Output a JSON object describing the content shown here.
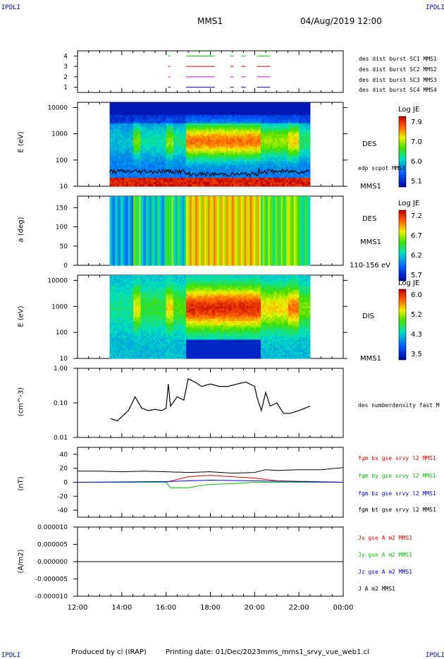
{
  "header": {
    "corner_left_top": "IPDLI",
    "corner_right_top": "IPDLI",
    "corner_left_bottom": "IPDLI",
    "corner_right_bottom": "IPDLI",
    "spacecraft": "MMS1",
    "datetime": "04/Aug/2019 12:00"
  },
  "footer": {
    "produced": "Produced by cl (IRAP)",
    "printing": "Printing date: 01/Dec/2023",
    "file": "mms_mms1_srvy_vue_web1.cl"
  },
  "colors": {
    "red": "#e00000",
    "green": "#00c000",
    "blue": "#0000e0",
    "magenta": "#d000d0",
    "black": "#000000"
  },
  "chart_data": [
    {
      "type": "line",
      "id": "burst",
      "yticks": [
        "1",
        "2",
        "3",
        "4"
      ],
      "legend": [
        {
          "text": "des dist burst SC1 MMS1",
          "color": "#0000e0"
        },
        {
          "text": "des dist burst SC2 MMS2",
          "color": "#d000d0"
        },
        {
          "text": "des dist burst SC3 MMS3",
          "color": "#e00000"
        },
        {
          "text": "des dist burst SC4 MMS4",
          "color": "#00c000"
        }
      ],
      "segments": [
        [
          16.1,
          16.2
        ],
        [
          16.9,
          18.2
        ],
        [
          18.9,
          19.05
        ],
        [
          19.4,
          19.6
        ],
        [
          20.1,
          20.7
        ]
      ]
    },
    {
      "type": "heatmap",
      "id": "des_energy",
      "ylabel": "E (eV)",
      "yticks": [
        "10",
        "100",
        "1000",
        "10000"
      ],
      "side_label": "DES",
      "sc_label": "MMS1",
      "overlay_label": "edp scpot MMS1",
      "colorbar": {
        "title": "Log JE",
        "ticks": [
          "7.9",
          "7.0",
          "6.0",
          "5.1"
        ]
      }
    },
    {
      "type": "heatmap",
      "id": "des_pitch",
      "ylabel": "a (deg)",
      "yticks": [
        "0",
        "50",
        "100",
        "150"
      ],
      "side_label": "DES",
      "sc_label": "MMS1",
      "energy_label": "110-156 eV",
      "colorbar": {
        "title": "Log JE",
        "ticks": [
          "7.2",
          "6.7",
          "6.2",
          "5.7"
        ]
      }
    },
    {
      "type": "heatmap",
      "id": "dis_energy",
      "ylabel": "E (eV)",
      "yticks": [
        "10",
        "100",
        "1000",
        "10000"
      ],
      "side_label": "DIS",
      "sc_label": "MMS1",
      "colorbar": {
        "title": "Log JE",
        "ticks": [
          "6.0",
          "5.2",
          "4.3",
          "3.5"
        ]
      }
    },
    {
      "type": "line",
      "id": "density",
      "ylabel": "(cm^-3)",
      "yticks": [
        "0.01",
        "0.10",
        "1.00"
      ],
      "series_label": "des numberdensity fast M",
      "x": [
        13.5,
        13.8,
        14.0,
        14.3,
        14.6,
        14.9,
        15.2,
        15.5,
        15.8,
        16.0,
        16.1,
        16.2,
        16.5,
        16.8,
        17.0,
        17.3,
        17.6,
        18.0,
        18.4,
        18.8,
        19.2,
        19.6,
        20.0,
        20.1,
        20.3,
        20.5,
        20.7,
        21.0,
        21.3,
        21.6,
        22.0,
        22.5
      ],
      "y": [
        0.035,
        0.03,
        0.04,
        0.06,
        0.15,
        0.07,
        0.06,
        0.065,
        0.06,
        0.07,
        0.35,
        0.08,
        0.15,
        0.12,
        0.5,
        0.4,
        0.3,
        0.35,
        0.3,
        0.3,
        0.35,
        0.4,
        0.3,
        0.15,
        0.06,
        0.2,
        0.08,
        0.1,
        0.05,
        0.05,
        0.06,
        0.08
      ]
    },
    {
      "type": "line",
      "id": "fgm",
      "ylabel": "(nT)",
      "yticks": [
        "-40",
        "-20",
        "0",
        "20",
        "40"
      ],
      "series": [
        {
          "name": "fgm bx gse srvy l2 MMS1",
          "color": "#e00000",
          "x": [
            12,
            16,
            17,
            18,
            19,
            20,
            21,
            24
          ],
          "y": [
            0,
            0,
            8,
            10,
            8,
            6,
            2,
            0
          ]
        },
        {
          "name": "fgm by gse srvy l2 MMS1",
          "color": "#00c000",
          "x": [
            12,
            16,
            16.2,
            17,
            17.5,
            18,
            19,
            20,
            22,
            24
          ],
          "y": [
            0,
            0,
            -8,
            -8,
            -5,
            -3,
            -2,
            0,
            0,
            0
          ]
        },
        {
          "name": "fgm bz gse srvy l2 MMS1",
          "color": "#0000e0",
          "x": [
            12,
            16,
            18,
            20,
            22,
            24
          ],
          "y": [
            0,
            1,
            3,
            2,
            1,
            0
          ]
        },
        {
          "name": "fgm bt gse srvy l2 MMS1",
          "color": "#000000",
          "x": [
            12,
            13,
            14,
            15,
            16,
            17,
            18,
            19,
            20,
            20.5,
            21,
            22,
            23,
            24
          ],
          "y": [
            16,
            16,
            15,
            16,
            15,
            14,
            15,
            13,
            14,
            18,
            17,
            18,
            18,
            21
          ]
        }
      ]
    },
    {
      "type": "line",
      "id": "current",
      "ylabel": "(A/m2)",
      "yticks": [
        "-0.000010",
        "-0.000005",
        "0.000000",
        "0.000005",
        "0.000010"
      ],
      "series": [
        {
          "name": "Jx gse A m2 MMS1",
          "color": "#e00000"
        },
        {
          "name": "Jy gse A m2 MMS1",
          "color": "#00c000"
        },
        {
          "name": "Jz gse A m2 MMS1",
          "color": "#0000e0"
        },
        {
          "name": "J A m2 MMS1",
          "color": "#000000"
        }
      ],
      "xticks": [
        "12:00",
        "14:00",
        "16:00",
        "18:00",
        "20:00",
        "22:00",
        "00:00"
      ]
    }
  ]
}
